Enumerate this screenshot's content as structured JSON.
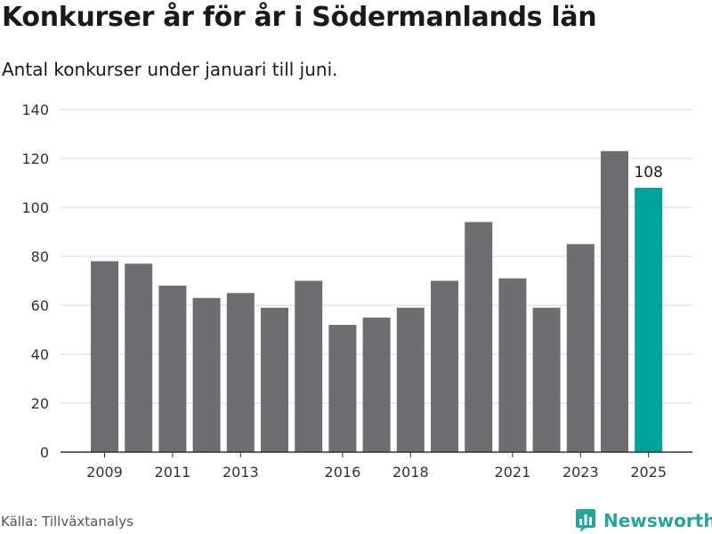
{
  "header": {
    "title": "Konkurser år för år i Södermanlands län",
    "subtitle": "Antal konkurser under januari till juni."
  },
  "footer": {
    "source": "Källa: Tillväxtanalys",
    "brand": "Newsworthy",
    "brand_icon": "bar-chart-logo-icon",
    "brand_color": "#26a69a"
  },
  "colors": {
    "bar": "#6e6d72",
    "highlight": "#00a39a",
    "grid": "#d8d8d8",
    "axis": "#333333"
  },
  "chart_data": {
    "type": "bar",
    "categories": [
      "2009",
      "2010",
      "2011",
      "2012",
      "2013",
      "2014",
      "2015",
      "2016",
      "2017",
      "2018",
      "2019",
      "2020",
      "2021",
      "2022",
      "2023",
      "2024",
      "2025"
    ],
    "values": [
      78,
      77,
      68,
      63,
      65,
      59,
      70,
      52,
      55,
      59,
      70,
      94,
      71,
      59,
      85,
      123,
      108
    ],
    "x_tick_labels": [
      "2009",
      "2011",
      "2013",
      "2016",
      "2018",
      "2021",
      "2023",
      "2025"
    ],
    "y_ticks": [
      0,
      20,
      40,
      60,
      80,
      100,
      120,
      140
    ],
    "ylim": [
      0,
      140
    ],
    "highlight_category": "2025",
    "data_labels": [
      {
        "category": "2025",
        "text": "108"
      }
    ],
    "grid": true,
    "legend": false
  }
}
